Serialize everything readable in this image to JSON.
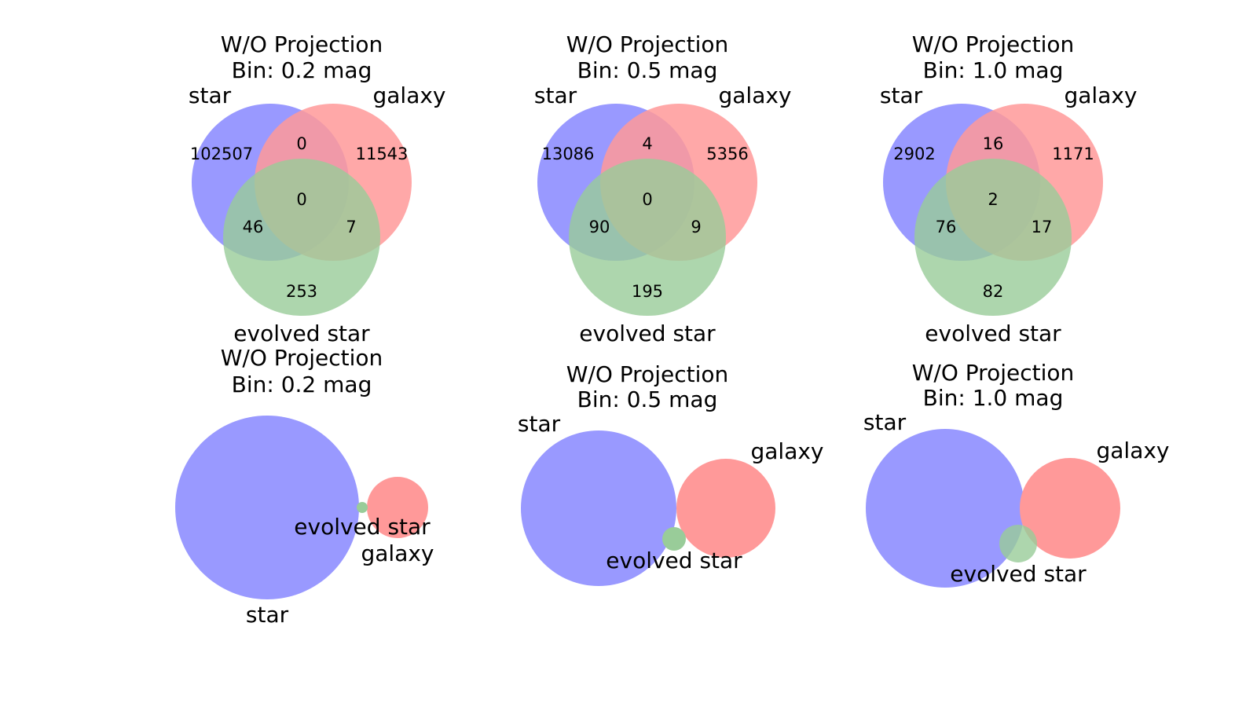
{
  "figure": {
    "set_names": [
      "star",
      "galaxy",
      "evolved star"
    ],
    "colors": {
      "star": "#9999ff",
      "galaxy": "#ff9999",
      "evolved_star": "#99cc99",
      "star_galaxy": "#dd99dd",
      "star_evolved": "#99bbdd",
      "galaxy_evolved": "#ddbb99",
      "all_three": "#bbaabb",
      "text": "#000000"
    },
    "panels": [
      {
        "id": "top-left",
        "title_line1": "W/O Projection",
        "title_line2": "Bin: 0.2 mag",
        "kind": "unweighted",
        "counts": {
          "star_only": "102507",
          "galaxy_only": "11543",
          "star_galaxy": "0",
          "all_three": "0",
          "star_evolved": "46",
          "galaxy_evolved": "7",
          "evolved_only": "253"
        }
      },
      {
        "id": "top-middle",
        "title_line1": "W/O Projection",
        "title_line2": "Bin: 0.5 mag",
        "kind": "unweighted",
        "counts": {
          "star_only": "13086",
          "galaxy_only": "5356",
          "star_galaxy": "4",
          "all_three": "0",
          "star_evolved": "90",
          "galaxy_evolved": "9",
          "evolved_only": "195"
        }
      },
      {
        "id": "top-right",
        "title_line1": "W/O Projection",
        "title_line2": "Bin: 1.0 mag",
        "kind": "unweighted",
        "counts": {
          "star_only": "2902",
          "galaxy_only": "1171",
          "star_galaxy": "16",
          "all_three": "2",
          "star_evolved": "76",
          "galaxy_evolved": "17",
          "evolved_only": "82"
        }
      },
      {
        "id": "bottom-left",
        "title_line1": "W/O Projection",
        "title_line2": "Bin: 0.2 mag",
        "kind": "proportional"
      },
      {
        "id": "bottom-middle",
        "title_line1": "W/O Projection",
        "title_line2": "Bin: 0.5 mag",
        "kind": "proportional"
      },
      {
        "id": "bottom-right",
        "title_line1": "W/O Projection",
        "title_line2": "Bin: 1.0 mag",
        "kind": "proportional"
      }
    ]
  }
}
